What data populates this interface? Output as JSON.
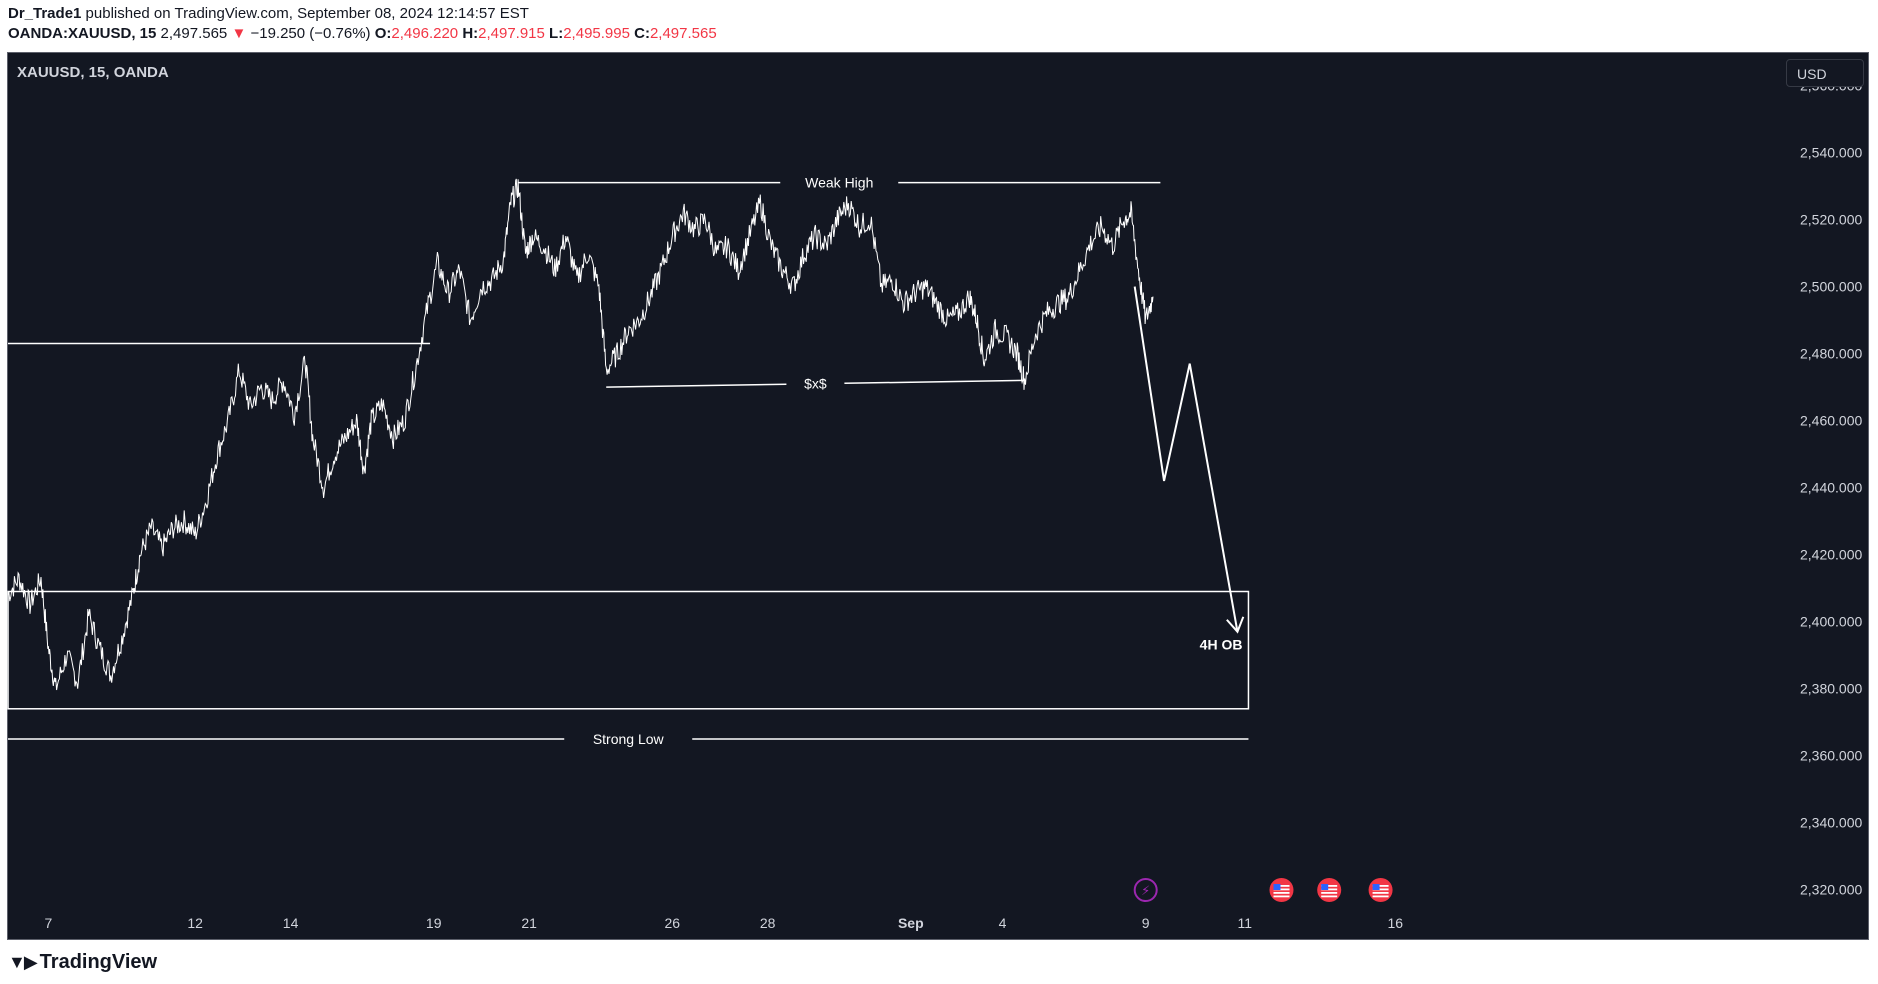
{
  "header": {
    "author": "Dr_Trade1",
    "published_text": "published on TradingView.com, September 08, 2024 12:14:57 EST",
    "symbol": "OANDA:XAUUSD, 15",
    "last_price": "2,497.565",
    "change_arrow": "▼",
    "change": "−19.250 (−0.76%)",
    "o_label": "O:",
    "o_value": "2,496.220",
    "h_label": "H:",
    "h_value": "2,497.915",
    "l_label": "L:",
    "l_value": "2,495.995",
    "c_label": "C:",
    "c_value": "2,497.565"
  },
  "chart_title": "XAUUSD, 15, OANDA",
  "currency_button": "USD",
  "footer_brand": "TradingView",
  "colors": {
    "background": "#131722",
    "price_line": "#ffffff",
    "axis_text": "#d1d4dc",
    "negative": "#f23645",
    "event_violet": "#9c27b0"
  },
  "chart_data": {
    "type": "line",
    "title": "XAUUSD, 15, OANDA",
    "ylim": [
      2305,
      2570
    ],
    "x_range": [
      0,
      40
    ],
    "y_ticks": [
      {
        "v": 2560,
        "label": "2,560.000"
      },
      {
        "v": 2540,
        "label": "2,540.000"
      },
      {
        "v": 2520,
        "label": "2,520.000"
      },
      {
        "v": 2500,
        "label": "2,500.000"
      },
      {
        "v": 2480,
        "label": "2,480.000"
      },
      {
        "v": 2460,
        "label": "2,460.000"
      },
      {
        "v": 2440,
        "label": "2,440.000"
      },
      {
        "v": 2420,
        "label": "2,420.000"
      },
      {
        "v": 2400,
        "label": "2,400.000"
      },
      {
        "v": 2380,
        "label": "2,380.000"
      },
      {
        "v": 2360,
        "label": "2,360.000"
      },
      {
        "v": 2340,
        "label": "2,340.000"
      },
      {
        "v": 2320,
        "label": "2,320.000"
      }
    ],
    "x_ticks": [
      {
        "x": 1.1,
        "label": "7"
      },
      {
        "x": 5.1,
        "label": "12"
      },
      {
        "x": 7.7,
        "label": "14"
      },
      {
        "x": 11.6,
        "label": "19"
      },
      {
        "x": 14.2,
        "label": "21"
      },
      {
        "x": 18.1,
        "label": "26"
      },
      {
        "x": 20.7,
        "label": "28"
      },
      {
        "x": 24.6,
        "label": "Sep"
      },
      {
        "x": 27.1,
        "label": "4"
      },
      {
        "x": 31.0,
        "label": "9"
      },
      {
        "x": 33.7,
        "label": "11"
      },
      {
        "x": 37.8,
        "label": "16"
      }
    ],
    "series": [
      {
        "points": [
          [
            0.0,
            2408
          ],
          [
            0.3,
            2413
          ],
          [
            0.6,
            2405
          ],
          [
            0.9,
            2413
          ],
          [
            1.1,
            2392
          ],
          [
            1.3,
            2380
          ],
          [
            1.6,
            2390
          ],
          [
            1.9,
            2382
          ],
          [
            2.2,
            2402
          ],
          [
            2.5,
            2392
          ],
          [
            2.8,
            2384
          ],
          [
            3.1,
            2395
          ],
          [
            3.4,
            2408
          ],
          [
            3.6,
            2420
          ],
          [
            3.9,
            2428
          ],
          [
            4.2,
            2422
          ],
          [
            4.5,
            2428
          ],
          [
            4.8,
            2430
          ],
          [
            5.1,
            2426
          ],
          [
            5.4,
            2436
          ],
          [
            5.7,
            2450
          ],
          [
            6.0,
            2460
          ],
          [
            6.3,
            2475
          ],
          [
            6.6,
            2464
          ],
          [
            6.9,
            2470
          ],
          [
            7.2,
            2466
          ],
          [
            7.5,
            2472
          ],
          [
            7.8,
            2462
          ],
          [
            8.1,
            2478
          ],
          [
            8.3,
            2455
          ],
          [
            8.6,
            2440
          ],
          [
            8.9,
            2450
          ],
          [
            9.2,
            2455
          ],
          [
            9.5,
            2460
          ],
          [
            9.7,
            2445
          ],
          [
            9.9,
            2460
          ],
          [
            10.2,
            2465
          ],
          [
            10.5,
            2455
          ],
          [
            10.8,
            2460
          ],
          [
            11.1,
            2475
          ],
          [
            11.4,
            2492
          ],
          [
            11.7,
            2507
          ],
          [
            12.0,
            2498
          ],
          [
            12.3,
            2505
          ],
          [
            12.6,
            2490
          ],
          [
            12.9,
            2500
          ],
          [
            13.2,
            2502
          ],
          [
            13.5,
            2508
          ],
          [
            13.7,
            2525
          ],
          [
            13.9,
            2530
          ],
          [
            14.1,
            2510
          ],
          [
            14.3,
            2515
          ],
          [
            14.6,
            2512
          ],
          [
            14.9,
            2505
          ],
          [
            15.2,
            2515
          ],
          [
            15.5,
            2502
          ],
          [
            15.8,
            2510
          ],
          [
            16.1,
            2500
          ],
          [
            16.3,
            2475
          ],
          [
            16.6,
            2480
          ],
          [
            16.9,
            2487
          ],
          [
            17.2,
            2490
          ],
          [
            17.5,
            2497
          ],
          [
            17.8,
            2505
          ],
          [
            18.1,
            2515
          ],
          [
            18.4,
            2522
          ],
          [
            18.7,
            2517
          ],
          [
            19.0,
            2520
          ],
          [
            19.3,
            2510
          ],
          [
            19.6,
            2512
          ],
          [
            19.9,
            2505
          ],
          [
            20.2,
            2515
          ],
          [
            20.5,
            2525
          ],
          [
            20.8,
            2512
          ],
          [
            21.1,
            2505
          ],
          [
            21.4,
            2500
          ],
          [
            21.7,
            2510
          ],
          [
            22.0,
            2515
          ],
          [
            22.3,
            2512
          ],
          [
            22.6,
            2520
          ],
          [
            22.9,
            2525
          ],
          [
            23.2,
            2518
          ],
          [
            23.5,
            2520
          ],
          [
            23.8,
            2500
          ],
          [
            24.1,
            2502
          ],
          [
            24.4,
            2495
          ],
          [
            24.7,
            2498
          ],
          [
            25.0,
            2500
          ],
          [
            25.3,
            2495
          ],
          [
            25.6,
            2490
          ],
          [
            25.9,
            2492
          ],
          [
            26.2,
            2497
          ],
          [
            26.4,
            2490
          ],
          [
            26.6,
            2478
          ],
          [
            26.9,
            2487
          ],
          [
            27.2,
            2485
          ],
          [
            27.5,
            2480
          ],
          [
            27.7,
            2472
          ],
          [
            28.0,
            2486
          ],
          [
            28.3,
            2492
          ],
          [
            28.6,
            2495
          ],
          [
            28.9,
            2497
          ],
          [
            29.2,
            2505
          ],
          [
            29.5,
            2513
          ],
          [
            29.8,
            2518
          ],
          [
            30.1,
            2512
          ],
          [
            30.4,
            2520
          ],
          [
            30.6,
            2522
          ],
          [
            30.8,
            2505
          ],
          [
            31.0,
            2490
          ],
          [
            31.2,
            2497
          ]
        ]
      }
    ],
    "annotations": [
      {
        "type": "hline",
        "label": "Weak High",
        "x1": 13.9,
        "x2": 31.4,
        "y1": 2531,
        "y2": 2531
      },
      {
        "type": "trendline",
        "label": "$x$",
        "x1": 16.3,
        "x2": 27.7,
        "y1": 2470,
        "y2": 2472
      },
      {
        "type": "hline",
        "label": "",
        "x1": 0.0,
        "x2": 11.5,
        "y1": 2483,
        "y2": 2483
      },
      {
        "type": "rect",
        "label": "4H OB",
        "x1": 0.0,
        "x2": 33.8,
        "y1": 2374,
        "y2": 2409
      },
      {
        "type": "hline",
        "label": "Strong Low",
        "x1": 0.0,
        "x2": 33.8,
        "y1": 2365,
        "y2": 2365
      },
      {
        "type": "path_arrow",
        "label": "",
        "points": [
          [
            30.7,
            2500
          ],
          [
            31.5,
            2442
          ],
          [
            32.2,
            2477
          ],
          [
            33.5,
            2397
          ]
        ]
      }
    ],
    "events": [
      {
        "x": 31.0,
        "kind": "lightning",
        "color": "#9c27b0"
      },
      {
        "x": 34.7,
        "kind": "us-flag",
        "color": "#f23645"
      },
      {
        "x": 36.0,
        "kind": "us-flag",
        "color": "#f23645"
      },
      {
        "x": 37.4,
        "kind": "us-flag",
        "color": "#f23645"
      }
    ]
  }
}
